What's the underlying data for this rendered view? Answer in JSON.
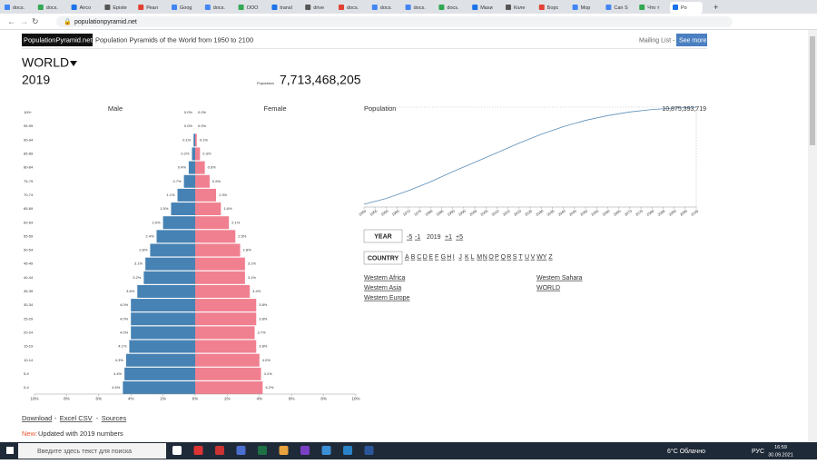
{
  "browser": {
    "tabs": [
      "docs.",
      "docs.",
      "Airco",
      "Episte",
      "Реал",
      "Goog",
      "docs.",
      "ООО",
      "transl",
      "drive",
      "docs.",
      "docs.",
      "docs.",
      "docs.",
      "Masи",
      "Коле",
      "Борс",
      "Мор",
      "Can S",
      "Что т",
      "Po"
    ],
    "url": "populationpyramid.net"
  },
  "header": {
    "logo": "PopulationPyramid.net",
    "tagline": "Population Pyramids of the World from 1950 to 2100",
    "mailing": "Mailing List",
    "separator": "-",
    "see_more": "See more"
  },
  "region": {
    "name": "WORLD",
    "year": "2019",
    "population_label": "Population",
    "population": "7,713,468,205"
  },
  "chart_data": [
    {
      "type": "pyramid",
      "categories": [
        "0-4",
        "5-9",
        "10-14",
        "15-19",
        "20-24",
        "25-29",
        "30-34",
        "35-39",
        "40-44",
        "45-49",
        "50-54",
        "55-59",
        "60-64",
        "65-69",
        "70-74",
        "75-79",
        "80-84",
        "85-89",
        "90-94",
        "95-99",
        "100+"
      ],
      "series": [
        {
          "name": "Male",
          "color": "#4682b4",
          "values": [
            4.5,
            4.4,
            4.3,
            4.1,
            4.0,
            4.0,
            4.0,
            3.6,
            3.2,
            3.1,
            2.8,
            2.4,
            2.0,
            1.5,
            1.1,
            0.7,
            0.4,
            0.2,
            0.1,
            0.0,
            0.0
          ],
          "value_labels": [
            "4.5%",
            "4.4%",
            "4.3%",
            "4.1%",
            "4.0%",
            "4.0%",
            "4.0%",
            "3.6%",
            "3.2%",
            "3.1%",
            "2.8%",
            "2.4%",
            "2.0%",
            "1.5%",
            "1.1%",
            "0.7%",
            "0.4%",
            "0.2%",
            "0.1%",
            "0.0%",
            "0.0%"
          ]
        },
        {
          "name": "Female",
          "color": "#f08090",
          "values": [
            4.2,
            4.1,
            4.0,
            3.8,
            3.7,
            3.8,
            3.8,
            3.4,
            3.1,
            3.1,
            2.8,
            2.5,
            2.1,
            1.6,
            1.3,
            0.9,
            0.6,
            0.3,
            0.1,
            0.0,
            0.0
          ],
          "value_labels": [
            "4.2%",
            "4.1%",
            "4.0%",
            "3.8%",
            "3.7%",
            "3.8%",
            "3.8%",
            "3.4%",
            "3.1%",
            "3.1%",
            "2.8%",
            "2.5%",
            "2.1%",
            "1.6%",
            "1.3%",
            "0.9%",
            "0.6%",
            "0.3%",
            "0.1%",
            "0.0%",
            "0.0%"
          ]
        }
      ],
      "xlim": [
        0,
        10
      ],
      "xticks": [
        {
          "value": 0,
          "label": "0%"
        },
        {
          "value": 2,
          "label": "2%"
        },
        {
          "value": 4,
          "label": "4%"
        },
        {
          "value": 6,
          "label": "6%"
        },
        {
          "value": 8,
          "label": "8%"
        },
        {
          "value": 10,
          "label": "10%"
        }
      ]
    },
    {
      "type": "line",
      "title": "Population",
      "color": "#5b8db8",
      "x": [
        1950,
        1960,
        1970,
        1980,
        1990,
        2000,
        2010,
        2020,
        2030,
        2040,
        2050,
        2060,
        2070,
        2080,
        2090,
        2100
      ],
      "values": [
        2540000000,
        3030000000,
        3700000000,
        4460000000,
        5330000000,
        6140000000,
        6960000000,
        7790000000,
        8550000000,
        9200000000,
        9740000000,
        10150000000,
        10460000000,
        10670000000,
        10800000000,
        10875393719
      ],
      "max_label": "10,875,393,719",
      "xlim": [
        1950,
        2100
      ],
      "ylim": [
        2300000000,
        10875393719
      ],
      "xticks": [
        1950,
        1955,
        1960,
        1965,
        1970,
        1975,
        1980,
        1985,
        1990,
        1995,
        2000,
        2005,
        2010,
        2015,
        2020,
        2025,
        2030,
        2035,
        2040,
        2045,
        2050,
        2055,
        2060,
        2065,
        2070,
        2075,
        2080,
        2085,
        2090,
        2095,
        2100
      ]
    }
  ],
  "year_selector": {
    "label": "YEAR",
    "steps": [
      "-5",
      "-1",
      "2019",
      "+1",
      "+5"
    ]
  },
  "country_selector": {
    "label": "COUNTRY",
    "letters": [
      "A",
      "B",
      "C",
      "D",
      "E",
      "F",
      "G",
      "H",
      "I",
      "J",
      "K",
      "L",
      "M",
      "N",
      "O",
      "P",
      "Q",
      "R",
      "S",
      "T",
      "U",
      "V",
      "W",
      "Y",
      "Z"
    ],
    "links": [
      [
        "Western Africa",
        "Western Asia",
        "Western Europe"
      ],
      [
        "Western Sahara",
        "WORLD"
      ]
    ]
  },
  "footer": {
    "links": [
      "Download",
      "Excel CSV",
      "Sources"
    ],
    "separator": "-",
    "new_label": "New:",
    "new_text": "Updated with 2019 numbers"
  },
  "taskbar": {
    "search": "Введите здесь текст для поиска",
    "weather": "6°C Облачно",
    "lang": "РУС",
    "time": "16:59",
    "date": "30.09.2021"
  }
}
